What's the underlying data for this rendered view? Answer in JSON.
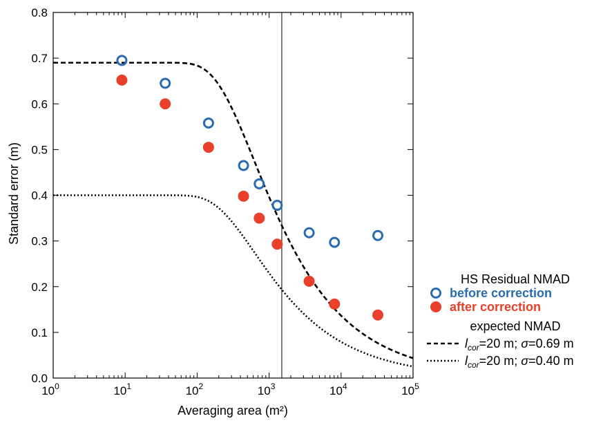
{
  "chart_data": {
    "type": "scatter",
    "xscale": "log",
    "xlim": [
      1,
      100000
    ],
    "ylim": [
      0,
      0.8
    ],
    "xlabel": "Averaging area (m²)",
    "ylabel": "Standard error (m)",
    "title": "",
    "grid": false,
    "legend_placement": "right",
    "vertical_line_x": 1500,
    "x_ticks": [
      {
        "value": 1,
        "base": "10",
        "exp": "0"
      },
      {
        "value": 10,
        "base": "10",
        "exp": "1"
      },
      {
        "value": 100,
        "base": "10",
        "exp": "2"
      },
      {
        "value": 1000,
        "base": "10",
        "exp": "3"
      },
      {
        "value": 10000,
        "base": "10",
        "exp": "4"
      },
      {
        "value": 100000,
        "base": "10",
        "exp": "5"
      }
    ],
    "y_ticks": [
      {
        "value": 0.0,
        "label": "0.0"
      },
      {
        "value": 0.1,
        "label": "0.1"
      },
      {
        "value": 0.2,
        "label": "0.2"
      },
      {
        "value": 0.3,
        "label": "0.3"
      },
      {
        "value": 0.4,
        "label": "0.4"
      },
      {
        "value": 0.5,
        "label": "0.5"
      },
      {
        "value": 0.6,
        "label": "0.6"
      },
      {
        "value": 0.7,
        "label": "0.7"
      },
      {
        "value": 0.8,
        "label": "0.8"
      }
    ],
    "series": [
      {
        "name": "before correction",
        "marker": "open-circle",
        "color": "#2b6cb0",
        "x": [
          9,
          36,
          144,
          441,
          729,
          1296,
          3600,
          8100,
          32400
        ],
        "y": [
          0.695,
          0.645,
          0.558,
          0.465,
          0.425,
          0.378,
          0.318,
          0.297,
          0.312
        ]
      },
      {
        "name": "after correction",
        "marker": "filled-circle",
        "color": "#e8402a",
        "x": [
          9,
          36,
          144,
          441,
          729,
          1296,
          3600,
          8100,
          32400
        ],
        "y": [
          0.652,
          0.6,
          0.505,
          0.398,
          0.35,
          0.293,
          0.212,
          0.162,
          0.138
        ]
      }
    ],
    "curves": [
      {
        "name": "l_cor=20 m; σ=0.69 m",
        "style": "dashed",
        "lcor": 20,
        "sigma": 0.69
      },
      {
        "name": "l_cor=20 m; σ=0.40 m",
        "style": "dotted",
        "lcor": 20,
        "sigma": 0.4
      }
    ]
  },
  "legend": {
    "title": "HS Residual NMAD",
    "before_label": "before correction",
    "after_label": "after correction",
    "expected_title": "expected NMAD",
    "curve1": {
      "l": "l",
      "sub": "cor",
      "mid": "=20 m; ",
      "sigma": "σ",
      "tail": "=0.69 m"
    },
    "curve2": {
      "l": "l",
      "sub": "cor",
      "mid": "=20 m; ",
      "sigma": "σ",
      "tail": "=0.40 m"
    }
  },
  "colors": {
    "before": "#2b6cb0",
    "after": "#e8402a",
    "line": "#000000"
  }
}
